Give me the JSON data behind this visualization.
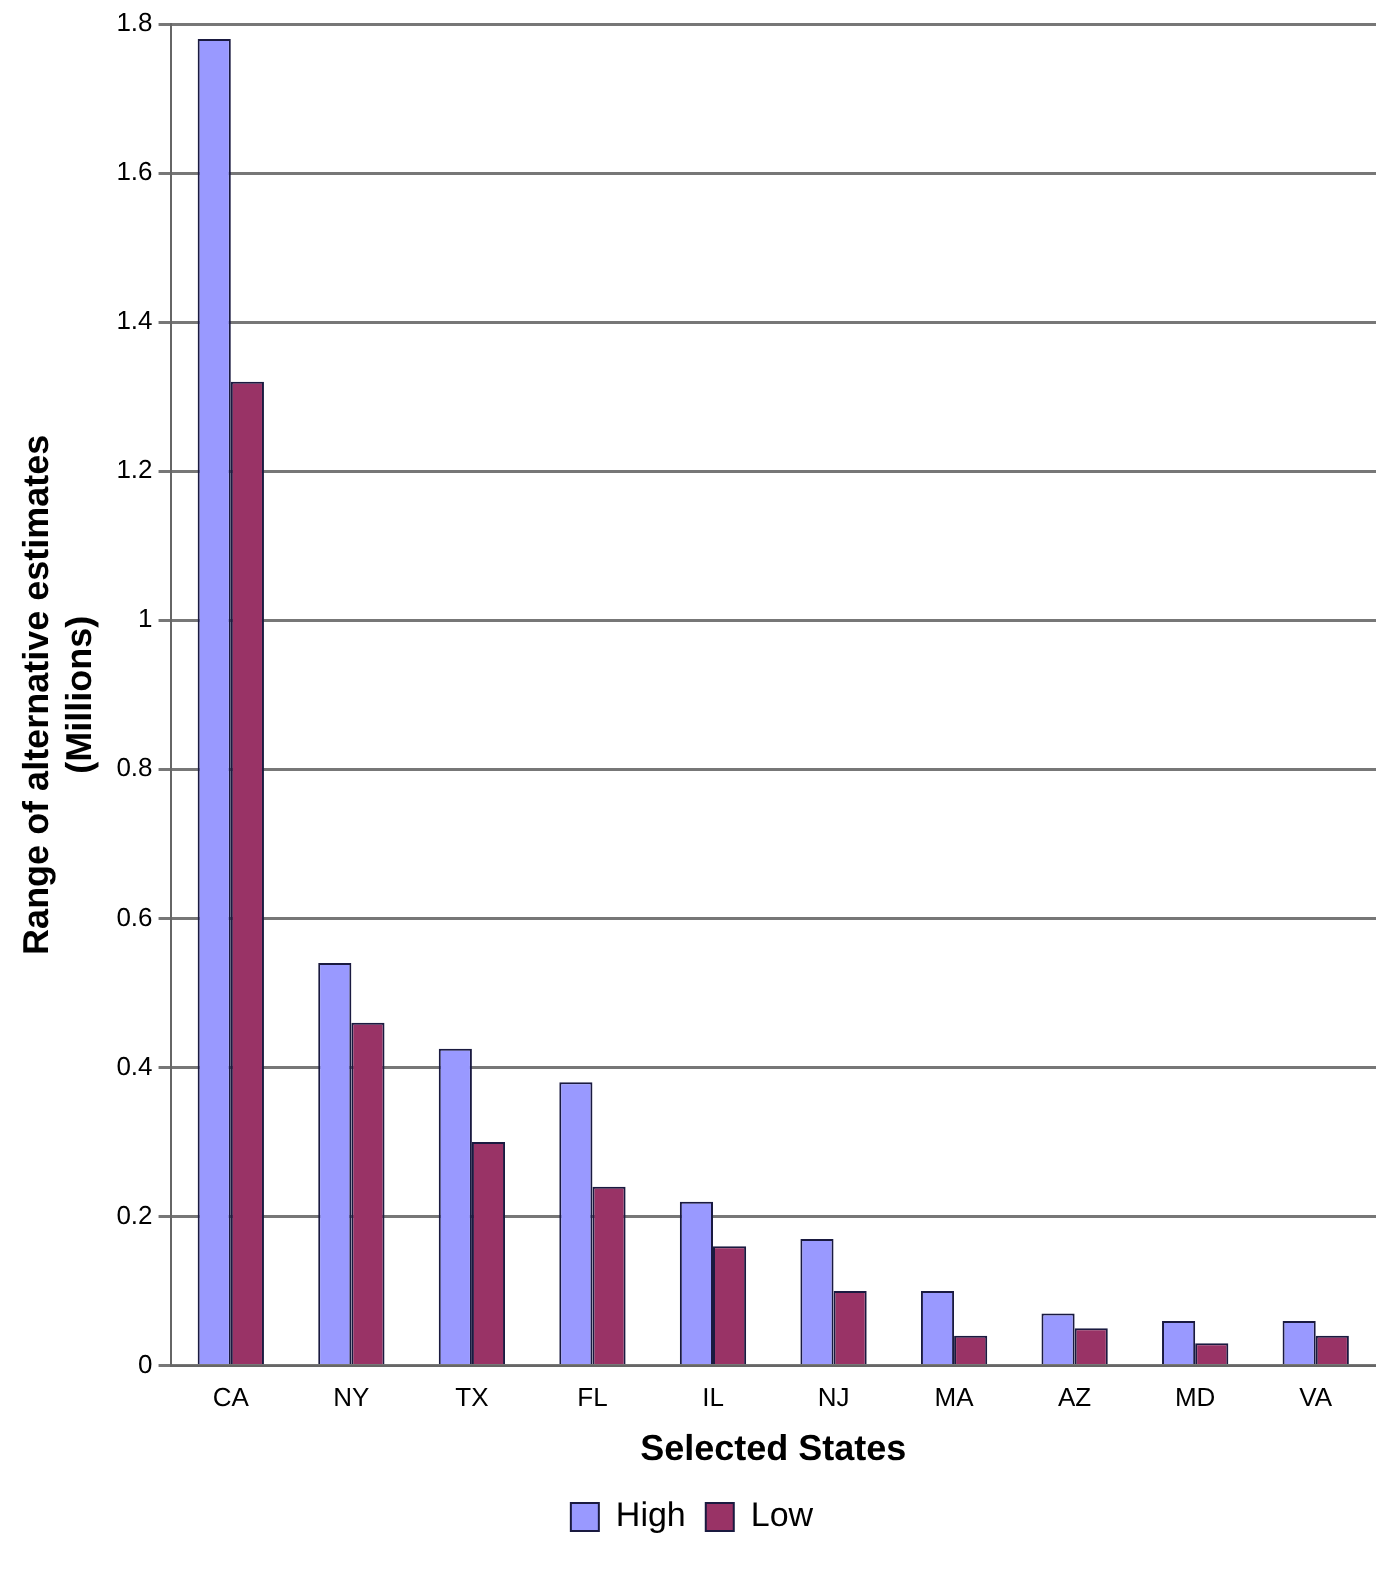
{
  "chart_data": {
    "type": "bar",
    "xlabel": "Selected States",
    "ylabel": "Range of alternative estimates\n(Millions)",
    "categories": [
      "CA",
      "NY",
      "TX",
      "FL",
      "IL",
      "NJ",
      "MA",
      "AZ",
      "MD",
      "VA"
    ],
    "series": [
      {
        "name": "High",
        "color": "#9999ff",
        "values": [
          1.78,
          0.54,
          0.425,
          0.38,
          0.22,
          0.17,
          0.1,
          0.07,
          0.06,
          0.06
        ]
      },
      {
        "name": "Low",
        "color": "#993366",
        "values": [
          1.32,
          0.46,
          0.3,
          0.24,
          0.16,
          0.1,
          0.04,
          0.05,
          0.03,
          0.04
        ]
      }
    ],
    "ylim": [
      0,
      1.8
    ],
    "yticks": [
      0,
      0.2,
      0.4,
      0.6,
      0.8,
      1,
      1.2,
      1.4,
      1.6,
      1.8
    ],
    "grid": "y",
    "legend": "bottom"
  }
}
